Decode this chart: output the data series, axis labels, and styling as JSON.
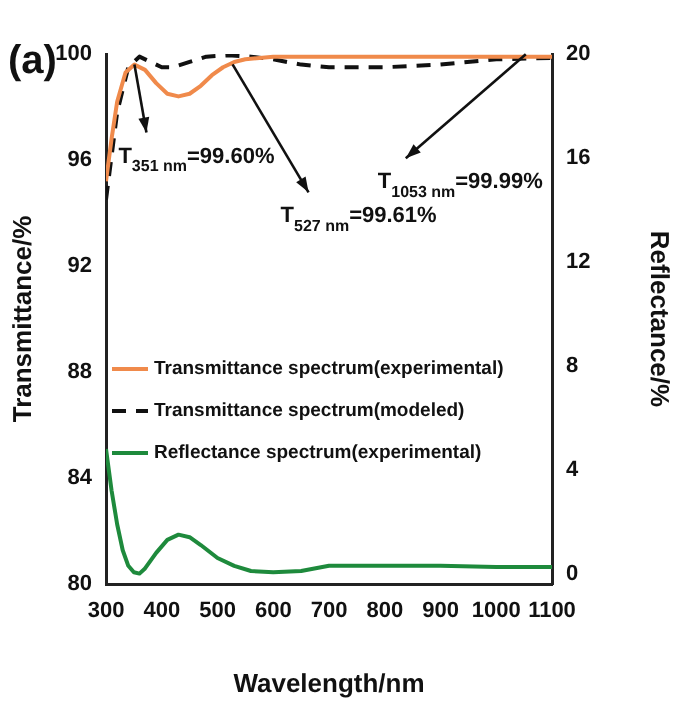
{
  "chart_data": {
    "type": "line",
    "xlabel": "Wavelength/nm",
    "ylabel": "Transmittance/%",
    "y2label": "Reflectance/%",
    "xlim": [
      300,
      1100
    ],
    "xticks": [
      300,
      400,
      500,
      600,
      700,
      800,
      900,
      1000,
      1100
    ],
    "ylim": [
      80,
      100
    ],
    "yticks": [
      80,
      84,
      88,
      92,
      96,
      100
    ],
    "y2lim": [
      -0.4,
      20
    ],
    "y2ticks": [
      0,
      4,
      8,
      12,
      16,
      20
    ],
    "grid": false,
    "legend": "left",
    "marker": "none",
    "series": [
      {
        "name": "Transmittance spectrum(experimental)",
        "color": "#f08a4b",
        "line_style": "solid",
        "x": [
          300,
          310,
          320,
          335,
          351,
          370,
          390,
          410,
          430,
          450,
          470,
          490,
          510,
          530,
          550,
          600,
          700,
          800,
          900,
          1000,
          1100
        ],
        "values": [
          95.2,
          96.8,
          98.2,
          99.3,
          99.6,
          99.4,
          98.9,
          98.5,
          98.4,
          98.5,
          98.8,
          99.2,
          99.5,
          99.7,
          99.8,
          99.9,
          99.9,
          99.9,
          99.9,
          99.9,
          99.9
        ]
      },
      {
        "name": "Transmittance spectrum(modeled)",
        "color": "#111111",
        "line_style": "dashed",
        "x": [
          300,
          320,
          340,
          360,
          380,
          400,
          420,
          450,
          480,
          520,
          560,
          600,
          650,
          700,
          800,
          900,
          1000,
          1100
        ],
        "values": [
          94.5,
          97.8,
          99.5,
          99.9,
          99.7,
          99.5,
          99.5,
          99.7,
          99.9,
          99.95,
          99.9,
          99.8,
          99.6,
          99.5,
          99.5,
          99.6,
          99.8,
          99.85
        ]
      },
      {
        "name": "Reflectance spectrum(experimental)",
        "color": "#1e8a3c",
        "line_style": "solid",
        "axis": "y2",
        "x": [
          300,
          310,
          320,
          330,
          340,
          350,
          360,
          370,
          390,
          410,
          430,
          450,
          470,
          500,
          530,
          560,
          600,
          650,
          700,
          800,
          900,
          1000,
          1100
        ],
        "values": [
          4.8,
          3.2,
          1.9,
          0.9,
          0.3,
          0.05,
          0.0,
          0.2,
          0.8,
          1.3,
          1.5,
          1.4,
          1.1,
          0.6,
          0.3,
          0.1,
          0.05,
          0.1,
          0.3,
          0.3,
          0.3,
          0.25,
          0.25
        ]
      }
    ],
    "annotations": [
      "(a)",
      {
        "text": "T$_{351 nm}$=99.60%",
        "x": 351,
        "y": 99.6
      },
      {
        "text": "T$_{527 nm}$=99.61%",
        "x": 527,
        "y": 99.61
      },
      {
        "text": "T$_{1053 nm}$=99.99%",
        "x": 1053,
        "y": 99.99
      }
    ]
  }
}
